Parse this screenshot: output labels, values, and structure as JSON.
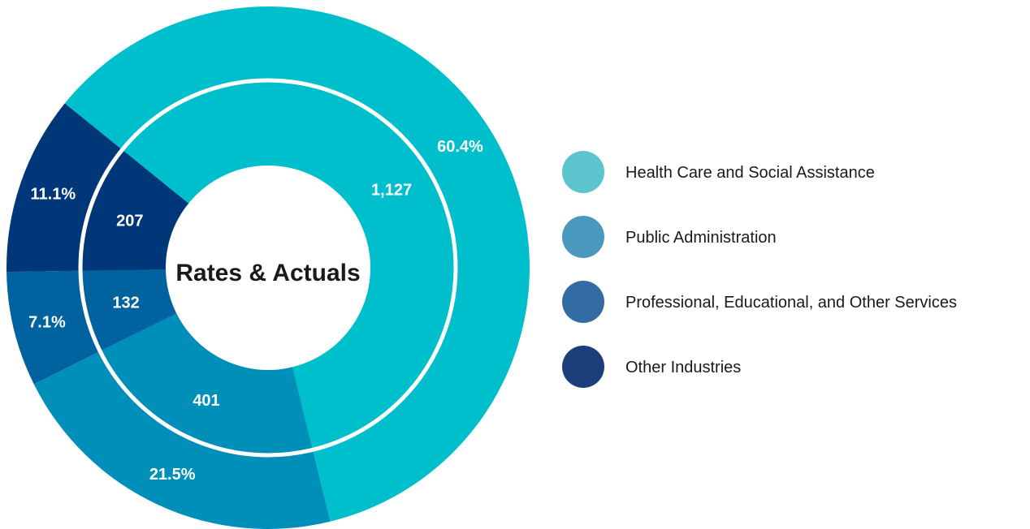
{
  "chart_data": {
    "type": "pie",
    "title": "Rates & Actuals",
    "categories": [
      "Health Care and Social Assistance",
      "Public Administration",
      "Professional, Educational, and Other Services",
      "Other Industries"
    ],
    "series": [
      {
        "ring": "inner",
        "values": [
          1127,
          401,
          132,
          207
        ],
        "labels": [
          "1,127",
          "401",
          "132",
          "207"
        ]
      },
      {
        "ring": "outer",
        "values": [
          60.4,
          21.5,
          7.1,
          11.1
        ],
        "labels": [
          "60.4%",
          "21.5%",
          "7.1%",
          "11.1%"
        ]
      }
    ],
    "legend": {
      "placement": "right",
      "items": [
        {
          "label": "Health Care and Social Assistance",
          "color": "#5bc4cc"
        },
        {
          "label": "Public Administration",
          "color": "#4a98bd"
        },
        {
          "label": "Professional, Educational, and Other Services",
          "color": "#336ca3"
        },
        {
          "label": "Other Industries",
          "color": "#1c3f7c"
        }
      ]
    },
    "slice_colors": [
      "#00bfcc",
      "#008fb9",
      "#00629f",
      "#003778"
    ]
  }
}
